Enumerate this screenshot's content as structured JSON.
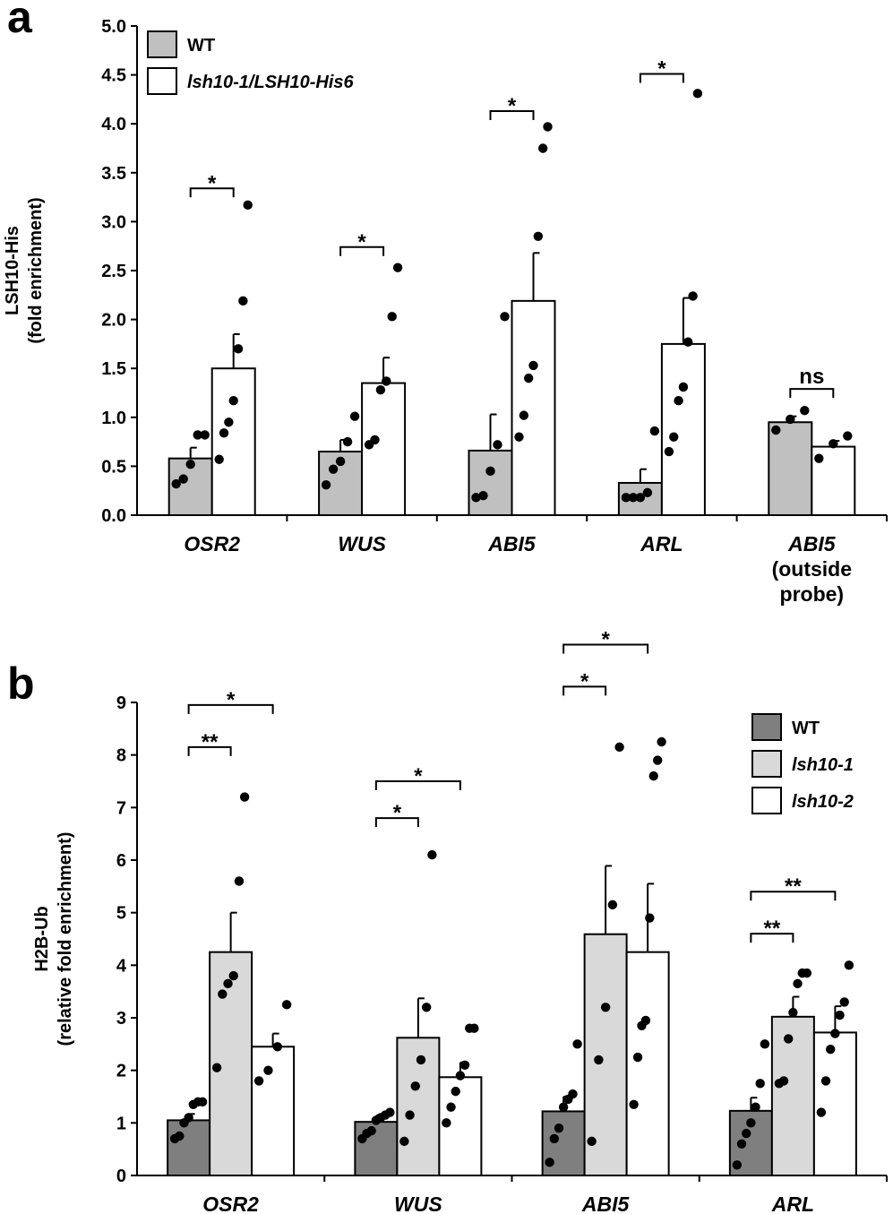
{
  "panel_a_label": "a",
  "panel_b_label": "b",
  "chart_data": [
    {
      "type": "bar",
      "ylabel": [
        "LSH10-His",
        "(fold enrichment)"
      ],
      "ylim": [
        0,
        5
      ],
      "yticks": [
        "0.0",
        "0.5",
        "1.0",
        "1.5",
        "2.0",
        "2.5",
        "3.0",
        "3.5",
        "4.0",
        "4.5",
        "5.0"
      ],
      "categories": [
        {
          "label": "OSR2",
          "italic": true
        },
        {
          "label": "WUS",
          "italic": true
        },
        {
          "label": "ABI5",
          "italic": true
        },
        {
          "label": "ARL",
          "italic": true
        },
        {
          "label": "ABI5",
          "italic": true,
          "sub": [
            "(outside",
            "probe)"
          ]
        }
      ],
      "legend": {
        "position": "top-left"
      },
      "series": [
        {
          "name": "WT",
          "italic": false,
          "color": "#c0c0c0",
          "values": [
            0.58,
            0.65,
            0.66,
            0.33,
            0.95
          ],
          "errors": [
            0.11,
            0.12,
            0.37,
            0.14,
            0.06
          ],
          "points": [
            [
              0.32,
              0.37,
              0.52,
              0.82,
              0.82
            ],
            [
              0.31,
              0.47,
              0.55,
              0.75,
              1.01
            ],
            [
              0.18,
              0.2,
              0.45,
              0.72,
              2.03
            ],
            [
              0.18,
              0.18,
              0.18,
              0.23,
              0.86
            ],
            [
              0.87,
              0.98,
              1.07
            ]
          ]
        },
        {
          "name": "lsh10-1/LSH10-His6",
          "italic": true,
          "color": "#ffffff",
          "values": [
            1.5,
            1.35,
            2.19,
            1.75,
            0.7
          ],
          "errors": [
            0.35,
            0.26,
            0.49,
            0.47,
            0.06
          ],
          "points": [
            [
              0.57,
              0.84,
              0.95,
              1.17,
              1.7,
              2.19,
              3.17
            ],
            [
              0.72,
              0.77,
              1.28,
              1.37,
              2.03,
              2.53
            ],
            [
              0.8,
              1.02,
              1.4,
              1.53,
              2.85,
              3.75,
              3.97
            ],
            [
              0.65,
              0.8,
              1.17,
              1.31,
              1.77,
              2.24,
              4.31
            ],
            [
              0.58,
              0.73,
              0.81
            ]
          ]
        }
      ],
      "significance": [
        {
          "cat": 0,
          "from": 0,
          "to": 1,
          "y": 3.34,
          "label": "*"
        },
        {
          "cat": 1,
          "from": 0,
          "to": 1,
          "y": 2.74,
          "label": "*"
        },
        {
          "cat": 2,
          "from": 0,
          "to": 1,
          "y": 4.13,
          "label": "*"
        },
        {
          "cat": 3,
          "from": 0,
          "to": 1,
          "y": 4.51,
          "label": "*"
        },
        {
          "cat": 4,
          "from": 0,
          "to": 1,
          "y": 1.29,
          "label": "ns"
        }
      ]
    },
    {
      "type": "bar",
      "ylabel": [
        "H2B-Ub",
        "(relative fold enrichment)"
      ],
      "ylim": [
        0,
        9
      ],
      "yticks": [
        "0",
        "1",
        "2",
        "3",
        "4",
        "5",
        "6",
        "7",
        "8",
        "9"
      ],
      "categories": [
        {
          "label": "OSR2",
          "italic": true
        },
        {
          "label": "WUS",
          "italic": true
        },
        {
          "label": "ABI5",
          "italic": true
        },
        {
          "label": "ARL",
          "italic": true
        }
      ],
      "legend": {
        "position": "top-right"
      },
      "series": [
        {
          "name": "WT",
          "italic": false,
          "color": "#7f7f7f",
          "values": [
            1.05,
            1.02,
            1.22,
            1.23
          ],
          "errors": [
            0.12,
            0.12,
            0.28,
            0.25
          ],
          "points": [
            [
              0.7,
              0.75,
              1.0,
              1.1,
              1.35,
              1.4,
              1.4
            ],
            [
              0.7,
              0.8,
              0.85,
              1.05,
              1.1,
              1.15,
              1.2
            ],
            [
              0.25,
              0.7,
              0.9,
              1.3,
              1.45,
              1.55,
              2.5
            ],
            [
              0.2,
              0.6,
              0.8,
              1.0,
              1.3,
              1.75,
              2.5
            ]
          ]
        },
        {
          "name": "lsh10-1",
          "italic": true,
          "color": "#d9d9d9",
          "values": [
            4.25,
            2.62,
            4.59,
            3.02
          ],
          "errors": [
            0.75,
            0.75,
            1.3,
            0.38
          ],
          "points": [
            [
              2.05,
              3.45,
              3.65,
              3.8,
              5.6,
              7.2
            ],
            [
              0.65,
              1.15,
              1.7,
              2.2,
              3.2,
              6.1
            ],
            [
              0.65,
              2.2,
              3.2,
              5.15,
              8.15
            ],
            [
              1.75,
              1.8,
              2.6,
              3.1,
              3.65,
              3.85,
              3.85
            ]
          ]
        },
        {
          "name": "lsh10-2",
          "italic": true,
          "color": "#ffffff",
          "values": [
            2.45,
            1.87,
            4.25,
            2.72
          ],
          "errors": [
            0.25,
            0.28,
            1.3,
            0.5
          ],
          "points": [
            [
              1.8,
              2.0,
              2.45,
              3.25
            ],
            [
              1.0,
              1.3,
              1.6,
              1.9,
              2.1,
              2.8,
              2.8
            ],
            [
              1.35,
              2.25,
              2.85,
              2.95,
              4.9,
              7.6,
              7.9,
              8.25
            ],
            [
              1.2,
              1.8,
              2.4,
              2.7,
              3.05,
              3.3,
              4.0
            ]
          ]
        }
      ],
      "significance": [
        {
          "cat": 0,
          "from": 0,
          "to": 1,
          "y": 8.15,
          "label": "**"
        },
        {
          "cat": 0,
          "from": 0,
          "to": 2,
          "y": 8.95,
          "label": "*"
        },
        {
          "cat": 1,
          "from": 0,
          "to": 1,
          "y": 6.8,
          "label": "*"
        },
        {
          "cat": 1,
          "from": 0,
          "to": 2,
          "y": 7.5,
          "label": "*"
        },
        {
          "cat": 2,
          "from": 0,
          "to": 1,
          "y": 9.3,
          "label": "*"
        },
        {
          "cat": 2,
          "from": 0,
          "to": 2,
          "y": 10.1,
          "label": "*"
        },
        {
          "cat": 3,
          "from": 0,
          "to": 1,
          "y": 4.6,
          "label": "**"
        },
        {
          "cat": 3,
          "from": 0,
          "to": 2,
          "y": 5.4,
          "label": "**"
        }
      ]
    }
  ]
}
